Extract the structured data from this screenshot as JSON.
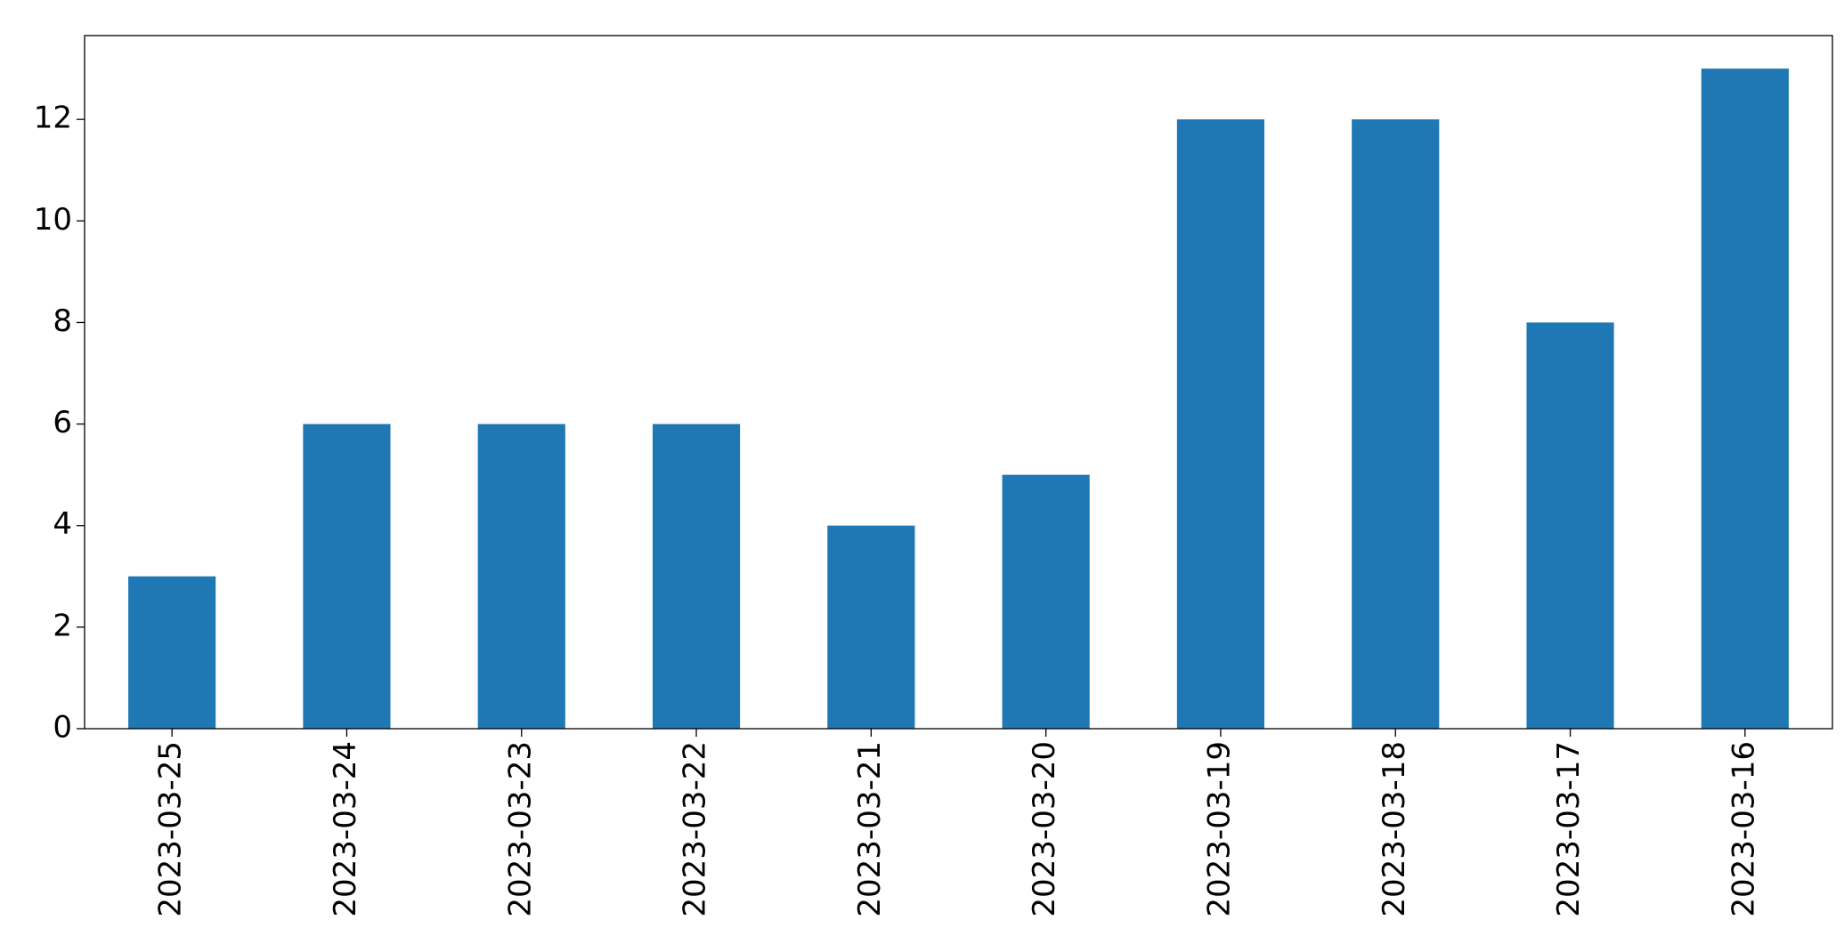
{
  "chart_data": {
    "type": "bar",
    "categories": [
      "2023-03-25",
      "2023-03-24",
      "2023-03-23",
      "2023-03-22",
      "2023-03-21",
      "2023-03-20",
      "2023-03-19",
      "2023-03-18",
      "2023-03-17",
      "2023-03-16"
    ],
    "values": [
      3,
      6,
      6,
      6,
      4,
      5,
      12,
      12,
      8,
      13
    ],
    "color": "#1f77b4",
    "ylim": [
      0,
      13.65
    ],
    "yticks": [
      0,
      2,
      4,
      6,
      8,
      10,
      12
    ],
    "grid": false
  }
}
